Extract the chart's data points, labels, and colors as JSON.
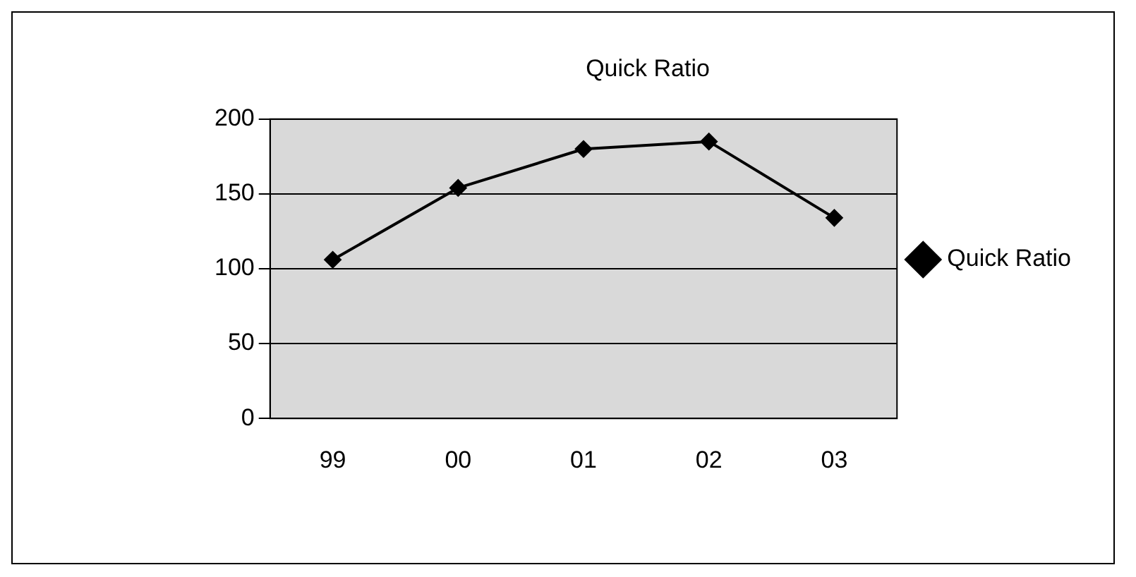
{
  "chart_data": {
    "type": "line",
    "title": "Quick Ratio",
    "categories": [
      "99",
      "00",
      "01",
      "02",
      "03"
    ],
    "series": [
      {
        "name": "Quick Ratio",
        "color": "#000000",
        "values": [
          106,
          154,
          180,
          185,
          134
        ]
      }
    ],
    "ylim": [
      0,
      200
    ],
    "yticks": [
      0,
      50,
      100,
      150,
      200
    ],
    "grid": "y",
    "legend": "right",
    "marker": "diamond",
    "line_style": "solid"
  }
}
